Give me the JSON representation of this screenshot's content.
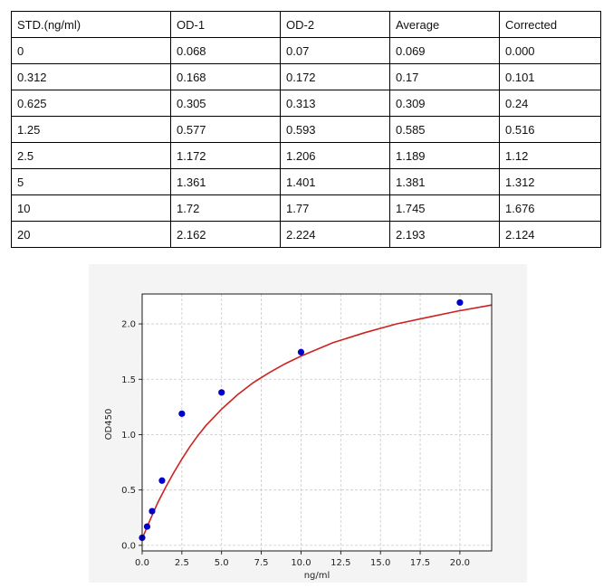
{
  "table": {
    "headers": [
      "STD.(ng/ml)",
      "OD-1",
      "OD-2",
      "Average",
      "Corrected"
    ],
    "rows": [
      [
        "0",
        "0.068",
        "0.07",
        "0.069",
        "0.000"
      ],
      [
        "0.312",
        "0.168",
        "0.172",
        "0.17",
        "0.101"
      ],
      [
        "0.625",
        "0.305",
        "0.313",
        "0.309",
        "0.24"
      ],
      [
        "1.25",
        "0.577",
        "0.593",
        "0.585",
        "0.516"
      ],
      [
        "2.5",
        "1.172",
        "1.206",
        "1.189",
        "1.12"
      ],
      [
        "5",
        "1.361",
        "1.401",
        "1.381",
        "1.312"
      ],
      [
        "10",
        "1.72",
        "1.77",
        "1.745",
        "1.676"
      ],
      [
        "20",
        "2.162",
        "2.224",
        "2.193",
        "2.124"
      ]
    ]
  },
  "chart_data": {
    "type": "scatter",
    "xlabel": "ng/ml",
    "ylabel": "OD450",
    "xlim": [
      0,
      22
    ],
    "ylim": [
      -0.05,
      2.27
    ],
    "xticks": [
      0,
      2.5,
      5,
      7.5,
      10,
      12.5,
      15,
      17.5,
      20
    ],
    "xtick_labels": [
      "0.0",
      "2.5",
      "5.0",
      "7.5",
      "10.0",
      "12.5",
      "15.0",
      "17.5",
      "20.0"
    ],
    "yticks": [
      0,
      0.5,
      1,
      1.5,
      2
    ],
    "ytick_labels": [
      "0.0",
      "0.5",
      "1.0",
      "1.5",
      "2.0"
    ],
    "grid": true,
    "series": [
      {
        "kind": "points",
        "x": [
          0,
          0.312,
          0.625,
          1.25,
          2.5,
          5,
          10,
          20
        ],
        "y": [
          0.069,
          0.17,
          0.309,
          0.585,
          1.189,
          1.381,
          1.745,
          2.193
        ],
        "color": "#0000cc"
      },
      {
        "kind": "fit-curve",
        "color": "#cc2222",
        "x": [
          0,
          0.5,
          1,
          1.5,
          2,
          2.5,
          3,
          3.5,
          4,
          5,
          6,
          7,
          8,
          9,
          10,
          12,
          14,
          16,
          18,
          20,
          22
        ],
        "y": [
          0.06,
          0.23,
          0.39,
          0.53,
          0.66,
          0.78,
          0.89,
          0.99,
          1.08,
          1.23,
          1.36,
          1.47,
          1.56,
          1.64,
          1.71,
          1.83,
          1.92,
          2.0,
          2.06,
          2.12,
          2.17
        ]
      }
    ]
  },
  "colors": {
    "figure_bg": "#f4f4f4",
    "axes_bg": "#ffffff",
    "grid": "#c8c8c8"
  }
}
